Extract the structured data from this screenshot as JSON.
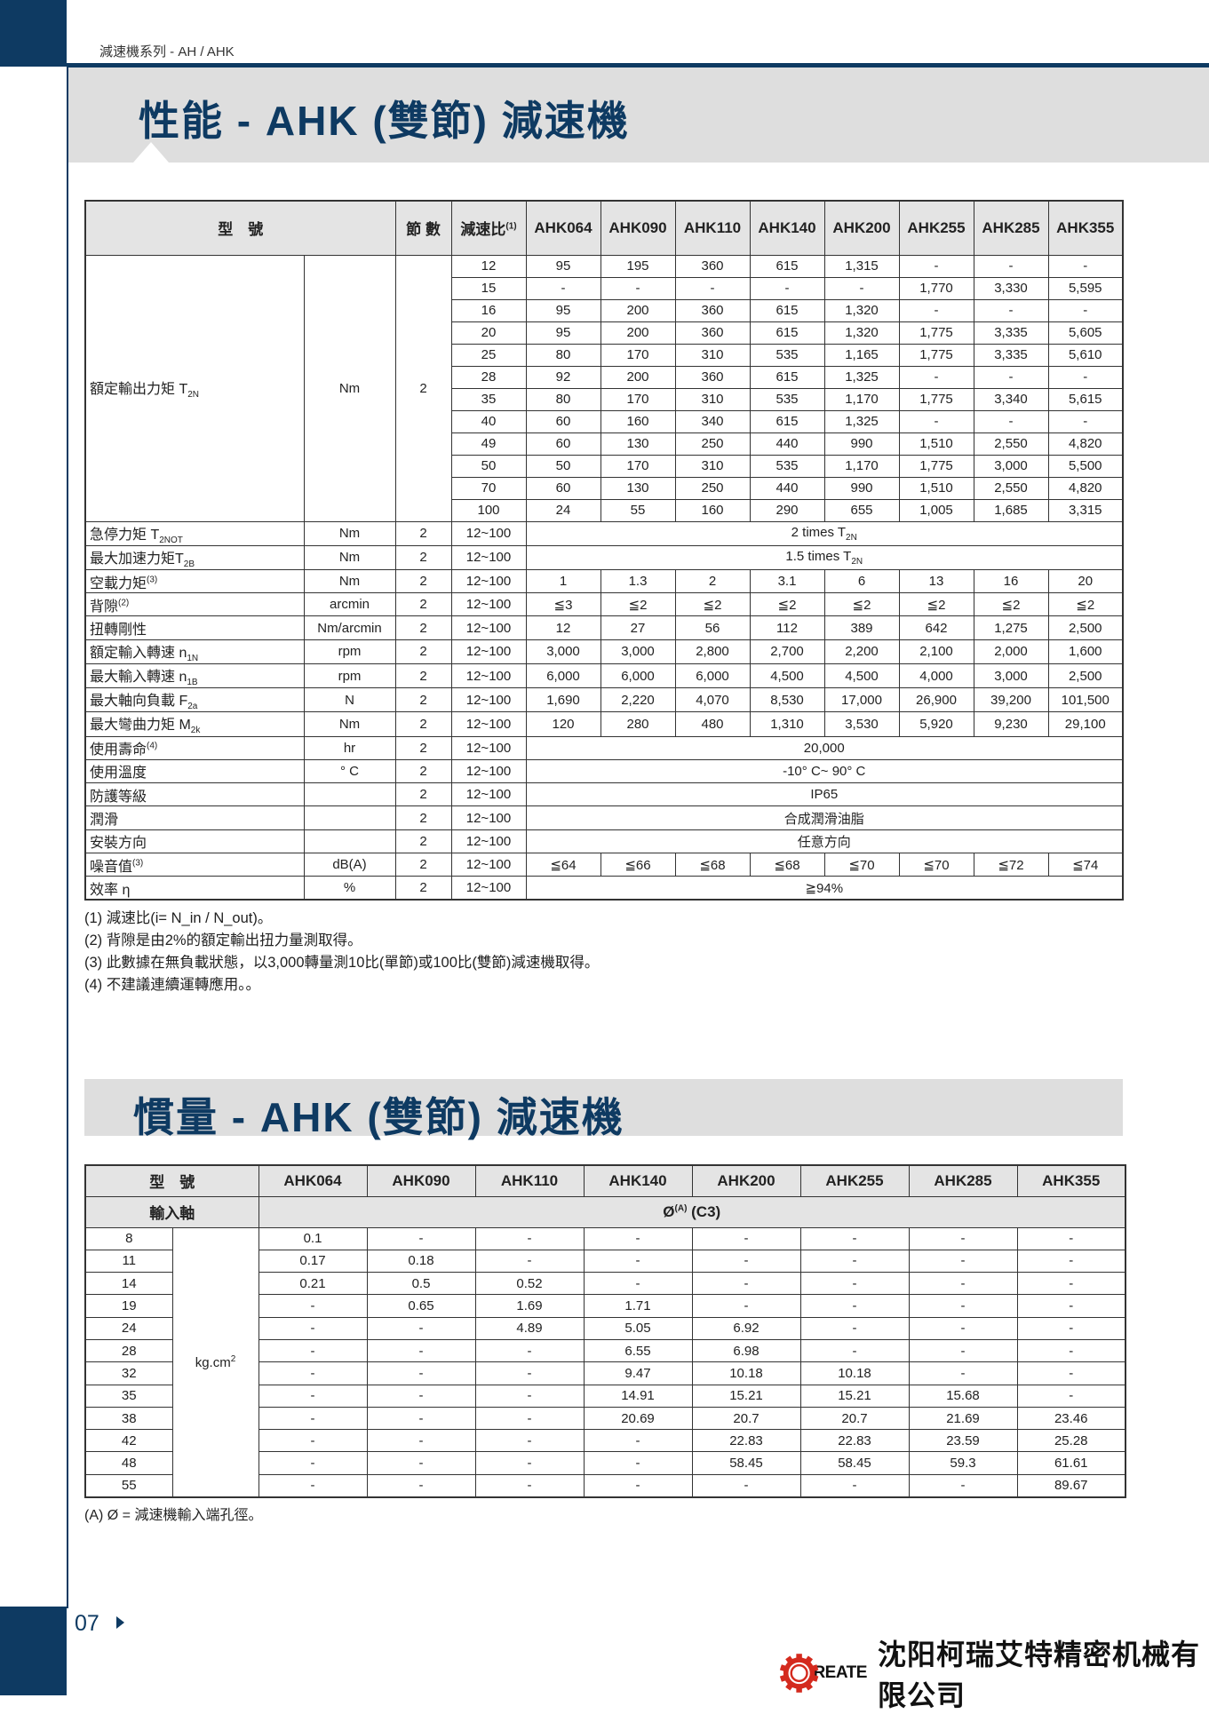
{
  "header": {
    "series": "減速機系列 - AH / AHK",
    "title1": "性能 - AHK (雙節) 減速機",
    "title2": "慣量 - AHK (雙節) 減速機"
  },
  "colors": {
    "brand": "#0e3a62",
    "band": "#dedede",
    "logo_red": "#d42a1e"
  },
  "models": [
    "AHK064",
    "AHK090",
    "AHK110",
    "AHK140",
    "AHK200",
    "AHK255",
    "AHK285",
    "AHK355"
  ],
  "perf": {
    "h_model": "型　號",
    "h_stage": "節 數",
    "h_ratio": "減速比",
    "h_ratio_sup": "(1)",
    "torque": {
      "label": "額定輸出力矩 T",
      "sub": "2N",
      "unit": "Nm",
      "stage": "2",
      "rows": [
        {
          "ratio": "12",
          "v": [
            "95",
            "195",
            "360",
            "615",
            "1,315",
            "-",
            "-",
            "-"
          ]
        },
        {
          "ratio": "15",
          "v": [
            "-",
            "-",
            "-",
            "-",
            "-",
            "1,770",
            "3,330",
            "5,595"
          ]
        },
        {
          "ratio": "16",
          "v": [
            "95",
            "200",
            "360",
            "615",
            "1,320",
            "-",
            "-",
            "-"
          ]
        },
        {
          "ratio": "20",
          "v": [
            "95",
            "200",
            "360",
            "615",
            "1,320",
            "1,775",
            "3,335",
            "5,605"
          ]
        },
        {
          "ratio": "25",
          "v": [
            "80",
            "170",
            "310",
            "535",
            "1,165",
            "1,775",
            "3,335",
            "5,610"
          ]
        },
        {
          "ratio": "28",
          "v": [
            "92",
            "200",
            "360",
            "615",
            "1,325",
            "-",
            "-",
            "-"
          ]
        },
        {
          "ratio": "35",
          "v": [
            "80",
            "170",
            "310",
            "535",
            "1,170",
            "1,775",
            "3,340",
            "5,615"
          ]
        },
        {
          "ratio": "40",
          "v": [
            "60",
            "160",
            "340",
            "615",
            "1,325",
            "-",
            "-",
            "-"
          ]
        },
        {
          "ratio": "49",
          "v": [
            "60",
            "130",
            "250",
            "440",
            "990",
            "1,510",
            "2,550",
            "4,820"
          ]
        },
        {
          "ratio": "50",
          "v": [
            "50",
            "170",
            "310",
            "535",
            "1,170",
            "1,775",
            "3,000",
            "5,500"
          ]
        },
        {
          "ratio": "70",
          "v": [
            "60",
            "130",
            "250",
            "440",
            "990",
            "1,510",
            "2,550",
            "4,820"
          ]
        },
        {
          "ratio": "100",
          "v": [
            "24",
            "55",
            "160",
            "290",
            "655",
            "1,005",
            "1,685",
            "3,315"
          ]
        }
      ]
    },
    "specs": [
      {
        "label": "急停力矩 T",
        "sub": "2NOT",
        "unit": "Nm",
        "stage": "2",
        "ratio": "12~100",
        "merged": "2 times T",
        "merged_sub": "2N"
      },
      {
        "label": "最大加速力矩T",
        "sub": "2B",
        "unit": "Nm",
        "stage": "2",
        "ratio": "12~100",
        "merged": "1.5 times T",
        "merged_sub": "2N"
      },
      {
        "label": "空載力矩",
        "sup": "(3)",
        "unit": "Nm",
        "stage": "2",
        "ratio": "12~100",
        "v": [
          "1",
          "1.3",
          "2",
          "3.1",
          "6",
          "13",
          "16",
          "20"
        ]
      },
      {
        "label": "背隙",
        "sup": "(2)",
        "unit": "arcmin",
        "stage": "2",
        "ratio": "12~100",
        "v": [
          "≦3",
          "≦2",
          "≦2",
          "≦2",
          "≦2",
          "≦2",
          "≦2",
          "≦2"
        ]
      },
      {
        "label": "扭轉剛性",
        "unit": "Nm/arcmin",
        "stage": "2",
        "ratio": "12~100",
        "v": [
          "12",
          "27",
          "56",
          "112",
          "389",
          "642",
          "1,275",
          "2,500"
        ]
      },
      {
        "label": "額定輸入轉速 n",
        "sub": "1N",
        "unit": "rpm",
        "stage": "2",
        "ratio": "12~100",
        "v": [
          "3,000",
          "3,000",
          "2,800",
          "2,700",
          "2,200",
          "2,100",
          "2,000",
          "1,600"
        ]
      },
      {
        "label": "最大輸入轉速 n",
        "sub": "1B",
        "unit": "rpm",
        "stage": "2",
        "ratio": "12~100",
        "v": [
          "6,000",
          "6,000",
          "6,000",
          "4,500",
          "4,500",
          "4,000",
          "3,000",
          "2,500"
        ]
      },
      {
        "label": "最大軸向負載 F",
        "sub": "2a",
        "unit": "N",
        "stage": "2",
        "ratio": "12~100",
        "v": [
          "1,690",
          "2,220",
          "4,070",
          "8,530",
          "17,000",
          "26,900",
          "39,200",
          "101,500"
        ]
      },
      {
        "label": "最大彎曲力矩 M",
        "sub": "2k",
        "unit": "Nm",
        "stage": "2",
        "ratio": "12~100",
        "v": [
          "120",
          "280",
          "480",
          "1,310",
          "3,530",
          "5,920",
          "9,230",
          "29,100"
        ]
      },
      {
        "label": "使用壽命",
        "sup": "(4)",
        "unit": "hr",
        "stage": "2",
        "ratio": "12~100",
        "merged": "20,000"
      },
      {
        "label": "使用溫度",
        "unit": "° C",
        "stage": "2",
        "ratio": "12~100",
        "merged": "-10° C~ 90° C"
      },
      {
        "label": "防護等級",
        "unit": "",
        "stage": "2",
        "ratio": "12~100",
        "merged": "IP65"
      },
      {
        "label": "潤滑",
        "unit": "",
        "stage": "2",
        "ratio": "12~100",
        "merged": "合成潤滑油脂"
      },
      {
        "label": "安裝方向",
        "unit": "",
        "stage": "2",
        "ratio": "12~100",
        "merged": "任意方向"
      },
      {
        "label": "噪音值",
        "sup": "(3)",
        "unit": "dB(A)",
        "stage": "2",
        "ratio": "12~100",
        "v": [
          "≦64",
          "≦66",
          "≦68",
          "≦68",
          "≦70",
          "≦70",
          "≦72",
          "≦74"
        ]
      },
      {
        "label": "效率 η",
        "unit": "%",
        "stage": "2",
        "ratio": "12~100",
        "merged": "≧94%"
      }
    ],
    "notes": [
      "(1) 減速比(i= N_in / N_out)。",
      "(2) 背隙是由2%的額定輸出扭力量測取得。",
      "(3) 此數據在無負載狀態，以3,000轉量測10比(單節)或100比(雙節)減速機取得。",
      "(4) 不建議連續運轉應用。。"
    ]
  },
  "inertia": {
    "h_model": "型　號",
    "h_input": "輸入軸",
    "h_bore": "Ø",
    "h_bore_sup": "(A)",
    "h_bore_tail": " (C3)",
    "unit": "kg.cm",
    "unit_sup": "2",
    "rows": [
      {
        "d": "8",
        "v": [
          "0.1",
          "-",
          "-",
          "-",
          "-",
          "-",
          "-",
          "-"
        ]
      },
      {
        "d": "11",
        "v": [
          "0.17",
          "0.18",
          "-",
          "-",
          "-",
          "-",
          "-",
          "-"
        ]
      },
      {
        "d": "14",
        "v": [
          "0.21",
          "0.5",
          "0.52",
          "-",
          "-",
          "-",
          "-",
          "-"
        ]
      },
      {
        "d": "19",
        "v": [
          "-",
          "0.65",
          "1.69",
          "1.71",
          "-",
          "-",
          "-",
          "-"
        ]
      },
      {
        "d": "24",
        "v": [
          "-",
          "-",
          "4.89",
          "5.05",
          "6.92",
          "-",
          "-",
          "-"
        ]
      },
      {
        "d": "28",
        "v": [
          "-",
          "-",
          "-",
          "6.55",
          "6.98",
          "-",
          "-",
          "-"
        ]
      },
      {
        "d": "32",
        "v": [
          "-",
          "-",
          "-",
          "9.47",
          "10.18",
          "10.18",
          "-",
          "-"
        ]
      },
      {
        "d": "35",
        "v": [
          "-",
          "-",
          "-",
          "14.91",
          "15.21",
          "15.21",
          "15.68",
          "-"
        ]
      },
      {
        "d": "38",
        "v": [
          "-",
          "-",
          "-",
          "20.69",
          "20.7",
          "20.7",
          "21.69",
          "23.46"
        ]
      },
      {
        "d": "42",
        "v": [
          "-",
          "-",
          "-",
          "-",
          "22.83",
          "22.83",
          "23.59",
          "25.28"
        ]
      },
      {
        "d": "48",
        "v": [
          "-",
          "-",
          "-",
          "-",
          "58.45",
          "58.45",
          "59.3",
          "61.61"
        ]
      },
      {
        "d": "55",
        "v": [
          "-",
          "-",
          "-",
          "-",
          "-",
          "-",
          "-",
          "89.67"
        ]
      }
    ],
    "note": "(A) Ø = 減速機輸入端孔徑。"
  },
  "footer": {
    "page": "07",
    "logo_word": "CREATE",
    "company": "沈阳柯瑞艾特精密机械有限公司"
  }
}
